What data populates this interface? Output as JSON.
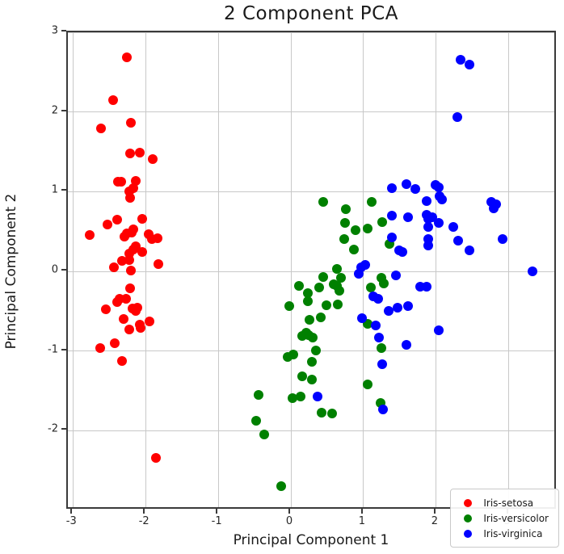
{
  "chart_data": {
    "type": "scatter",
    "title": "2 Component PCA",
    "xlabel": "Principal Component 1",
    "ylabel": "Principal Component 2",
    "xlim": [
      -3.07,
      3.67
    ],
    "ylim": [
      -3.0,
      3.0
    ],
    "xticks": [
      -3,
      -2,
      -1,
      0,
      1,
      2,
      3
    ],
    "yticks": [
      3,
      2,
      1,
      0,
      -1,
      -2
    ],
    "grid": true,
    "legend_position": "lower right",
    "marker_size_px": 12,
    "series": [
      {
        "name": "Iris-setosa",
        "color": "#ff0000",
        "points": [
          [
            -2.26,
            0.48
          ],
          [
            -2.08,
            -0.67
          ],
          [
            -2.36,
            -0.34
          ],
          [
            -2.3,
            -0.6
          ],
          [
            -2.39,
            0.65
          ],
          [
            -2.08,
            1.49
          ],
          [
            -2.44,
            0.05
          ],
          [
            -2.23,
            0.22
          ],
          [
            -2.33,
            -1.12
          ],
          [
            -2.18,
            -0.47
          ],
          [
            -2.17,
            1.04
          ],
          [
            -2.33,
            0.13
          ],
          [
            -2.22,
            -0.73
          ],
          [
            -2.63,
            -0.96
          ],
          [
            -2.2,
            1.86
          ],
          [
            -2.26,
            2.69
          ],
          [
            -2.21,
            1.48
          ],
          [
            -2.19,
            0.49
          ],
          [
            -1.9,
            1.41
          ],
          [
            -2.34,
            1.13
          ],
          [
            -1.91,
            0.41
          ],
          [
            -2.21,
            0.92
          ],
          [
            -2.77,
            0.46
          ],
          [
            -1.82,
            0.09
          ],
          [
            -2.23,
            0.14
          ],
          [
            -1.95,
            -0.63
          ],
          [
            -2.05,
            0.24
          ],
          [
            -2.17,
            0.53
          ],
          [
            -2.14,
            0.31
          ],
          [
            -2.27,
            -0.34
          ],
          [
            -2.14,
            -0.5
          ],
          [
            -1.83,
            0.42
          ],
          [
            -2.61,
            1.79
          ],
          [
            -2.45,
            2.15
          ],
          [
            -2.11,
            -0.46
          ],
          [
            -2.21,
            -0.21
          ],
          [
            -2.05,
            0.66
          ],
          [
            -2.53,
            0.59
          ],
          [
            -2.43,
            -0.9
          ],
          [
            -2.17,
            0.27
          ],
          [
            -2.29,
            0.44
          ],
          [
            -1.86,
            -2.34
          ],
          [
            -2.55,
            -0.48
          ],
          [
            -1.96,
            0.47
          ],
          [
            -2.14,
            1.14
          ],
          [
            -2.07,
            -0.71
          ],
          [
            -2.38,
            1.12
          ],
          [
            -2.39,
            -0.39
          ],
          [
            -2.23,
            1.0
          ],
          [
            -2.2,
            0.01
          ]
        ]
      },
      {
        "name": "Iris-versicolor",
        "color": "#008000",
        "points": [
          [
            0.44,
            0.87
          ],
          [
            0.76,
            0.78
          ],
          [
            0.74,
            0.61
          ],
          [
            0.89,
            0.52
          ],
          [
            1.06,
            0.54
          ],
          [
            1.11,
            0.87
          ],
          [
            0.73,
            0.41
          ],
          [
            0.87,
            0.27
          ],
          [
            1.26,
            0.62
          ],
          [
            1.36,
            0.34
          ],
          [
            0.63,
            0.03
          ],
          [
            0.45,
            -0.07
          ],
          [
            0.69,
            -0.08
          ],
          [
            0.59,
            -0.16
          ],
          [
            0.63,
            -0.18
          ],
          [
            0.39,
            -0.2
          ],
          [
            0.11,
            -0.18
          ],
          [
            0.67,
            -0.24
          ],
          [
            0.23,
            -0.27
          ],
          [
            0.23,
            -0.37
          ],
          [
            -0.02,
            -0.44
          ],
          [
            0.49,
            -0.43
          ],
          [
            0.64,
            -0.42
          ],
          [
            0.26,
            -0.61
          ],
          [
            0.41,
            -0.58
          ],
          [
            0.21,
            -0.77
          ],
          [
            0.15,
            -0.81
          ],
          [
            0.24,
            -0.8
          ],
          [
            0.3,
            -0.83
          ],
          [
            0.34,
            -0.99
          ],
          [
            -0.04,
            -1.07
          ],
          [
            0.03,
            -1.04
          ],
          [
            0.29,
            -1.14
          ],
          [
            0.16,
            -1.32
          ],
          [
            0.29,
            -1.36
          ],
          [
            -0.45,
            -1.55
          ],
          [
            0.02,
            -1.59
          ],
          [
            0.13,
            -1.57
          ],
          [
            0.42,
            -1.77
          ],
          [
            0.57,
            -1.78
          ],
          [
            -0.48,
            -1.87
          ],
          [
            -0.37,
            -2.05
          ],
          [
            -0.13,
            -2.7
          ],
          [
            1.06,
            -1.42
          ],
          [
            1.23,
            -1.65
          ],
          [
            1.06,
            -0.66
          ],
          [
            1.24,
            -0.96
          ],
          [
            1.1,
            -0.2
          ],
          [
            1.24,
            -0.08
          ],
          [
            1.28,
            -0.15
          ]
        ]
      },
      {
        "name": "Iris-virginica",
        "color": "#0000ff",
        "points": [
          [
            2.33,
            2.66
          ],
          [
            2.46,
            2.59
          ],
          [
            2.29,
            1.94
          ],
          [
            1.39,
            1.04
          ],
          [
            1.59,
            1.09
          ],
          [
            1.71,
            1.03
          ],
          [
            1.99,
            1.08
          ],
          [
            2.03,
            1.05
          ],
          [
            1.87,
            0.88
          ],
          [
            2.05,
            0.94
          ],
          [
            2.08,
            0.9
          ],
          [
            2.76,
            0.87
          ],
          [
            2.82,
            0.84
          ],
          [
            2.79,
            0.79
          ],
          [
            1.39,
            0.7
          ],
          [
            1.61,
            0.68
          ],
          [
            1.87,
            0.71
          ],
          [
            1.89,
            0.66
          ],
          [
            1.95,
            0.68
          ],
          [
            2.03,
            0.61
          ],
          [
            1.89,
            0.56
          ],
          [
            2.24,
            0.56
          ],
          [
            1.39,
            0.43
          ],
          [
            1.89,
            0.41
          ],
          [
            2.3,
            0.39
          ],
          [
            2.91,
            0.41
          ],
          [
            2.46,
            0.26
          ],
          [
            1.89,
            0.32
          ],
          [
            1.49,
            0.26
          ],
          [
            1.53,
            0.24
          ],
          [
            0.97,
            0.05
          ],
          [
            1.02,
            0.08
          ],
          [
            0.93,
            -0.03
          ],
          [
            3.33,
            0.0
          ],
          [
            1.45,
            -0.05
          ],
          [
            1.78,
            -0.19
          ],
          [
            1.87,
            -0.19
          ],
          [
            1.13,
            -0.31
          ],
          [
            1.2,
            -0.34
          ],
          [
            1.35,
            -0.5
          ],
          [
            1.47,
            -0.46
          ],
          [
            1.61,
            -0.44
          ],
          [
            0.98,
            -0.59
          ],
          [
            1.17,
            -0.68
          ],
          [
            1.21,
            -0.83
          ],
          [
            2.03,
            -0.74
          ],
          [
            1.59,
            -0.92
          ],
          [
            1.26,
            -1.17
          ],
          [
            1.27,
            -1.73
          ],
          [
            0.37,
            -1.57
          ]
        ]
      }
    ]
  }
}
